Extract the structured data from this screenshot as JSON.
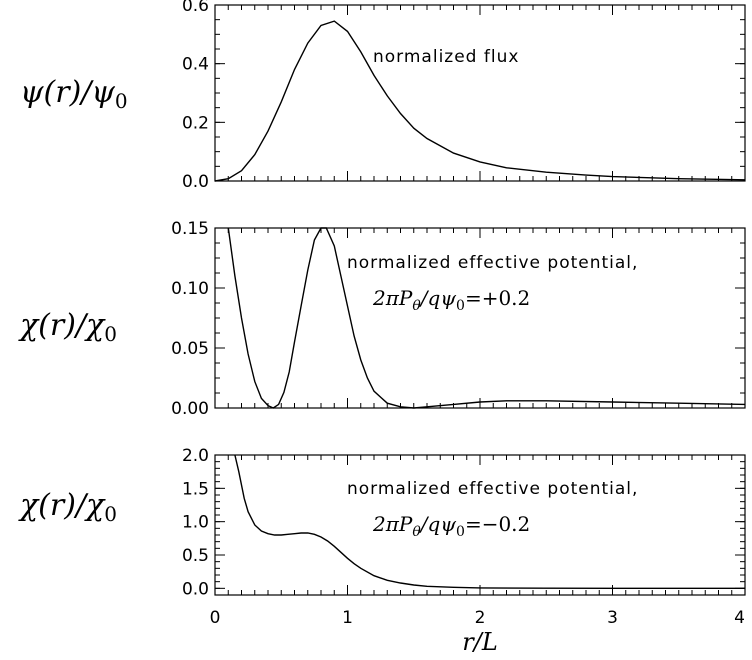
{
  "chart_data": [
    {
      "type": "line",
      "ylabel": "ψ(r)/ψ0",
      "annotation": "normalized flux",
      "xlim": [
        0,
        4
      ],
      "ylim": [
        0,
        0.6
      ],
      "yticks": [
        0.0,
        0.2,
        0.4,
        0.6
      ],
      "ytick_labels": [
        "0.0",
        "0.2",
        "0.4",
        "0.6"
      ],
      "x": [
        0.0,
        0.1,
        0.2,
        0.3,
        0.4,
        0.5,
        0.6,
        0.7,
        0.8,
        0.9,
        1.0,
        1.1,
        1.2,
        1.3,
        1.4,
        1.5,
        1.6,
        1.8,
        2.0,
        2.2,
        2.5,
        2.8,
        3.0,
        3.5,
        4.0
      ],
      "y": [
        0.0,
        0.008,
        0.035,
        0.09,
        0.17,
        0.27,
        0.38,
        0.47,
        0.53,
        0.545,
        0.51,
        0.44,
        0.36,
        0.29,
        0.23,
        0.18,
        0.145,
        0.095,
        0.065,
        0.045,
        0.03,
        0.02,
        0.015,
        0.008,
        0.004
      ]
    },
    {
      "type": "line",
      "ylabel": "χ(r)/χ0",
      "annotation": "normalized effective potential,",
      "formula": "2πPθ/qψ0=+0.2",
      "xlim": [
        0,
        4
      ],
      "ylim": [
        0,
        0.15
      ],
      "yticks": [
        0.0,
        0.05,
        0.1,
        0.15
      ],
      "ytick_labels": [
        "0.00",
        "0.05",
        "0.10",
        "0.15"
      ],
      "x": [
        0.1,
        0.15,
        0.2,
        0.25,
        0.3,
        0.35,
        0.4,
        0.44,
        0.48,
        0.52,
        0.56,
        0.6,
        0.65,
        0.7,
        0.75,
        0.8,
        0.84,
        0.9,
        0.95,
        1.0,
        1.05,
        1.1,
        1.15,
        1.2,
        1.3,
        1.4,
        1.5,
        1.6,
        1.8,
        2.0,
        2.2,
        2.5,
        3.0,
        3.5,
        4.0
      ],
      "y": [
        0.15,
        0.11,
        0.075,
        0.045,
        0.022,
        0.008,
        0.002,
        0.0,
        0.003,
        0.013,
        0.03,
        0.055,
        0.085,
        0.115,
        0.14,
        0.152,
        0.15,
        0.135,
        0.11,
        0.085,
        0.06,
        0.04,
        0.025,
        0.014,
        0.004,
        0.001,
        0.0,
        0.001,
        0.003,
        0.005,
        0.006,
        0.006,
        0.005,
        0.004,
        0.003
      ]
    },
    {
      "type": "line",
      "ylabel": "χ(r)/χ0",
      "xlabel": "r/L",
      "annotation": "normalized effective potential,",
      "formula": "2πPθ/qψ0=−0.2",
      "xlim": [
        0,
        4
      ],
      "ylim": [
        -0.1,
        2.0
      ],
      "yticks": [
        0.0,
        0.5,
        1.0,
        1.5,
        2.0
      ],
      "ytick_labels": [
        "0.0",
        "0.5",
        "1.0",
        "1.5",
        "2.0"
      ],
      "xticks": [
        0,
        1,
        2,
        3,
        4
      ],
      "xtick_labels": [
        "0",
        "1",
        "2",
        "3",
        "4"
      ],
      "x": [
        0.15,
        0.18,
        0.2,
        0.22,
        0.25,
        0.3,
        0.35,
        0.4,
        0.45,
        0.5,
        0.55,
        0.6,
        0.65,
        0.7,
        0.75,
        0.8,
        0.85,
        0.9,
        0.95,
        1.0,
        1.05,
        1.1,
        1.2,
        1.3,
        1.4,
        1.5,
        1.6,
        1.8,
        2.0,
        2.5,
        3.0,
        3.5,
        4.0
      ],
      "y": [
        2.05,
        1.75,
        1.55,
        1.35,
        1.15,
        0.95,
        0.86,
        0.82,
        0.8,
        0.8,
        0.81,
        0.82,
        0.83,
        0.83,
        0.81,
        0.77,
        0.71,
        0.63,
        0.54,
        0.45,
        0.37,
        0.3,
        0.19,
        0.12,
        0.08,
        0.05,
        0.03,
        0.015,
        0.007,
        0.002,
        0.001,
        0.0,
        0.0
      ]
    }
  ]
}
